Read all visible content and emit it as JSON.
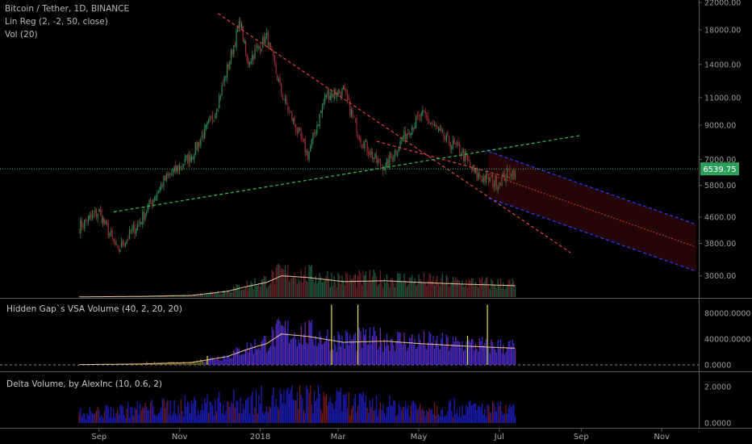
{
  "header": {
    "symbol_line": "Bitcoin / Tether, 1D, BINANCE",
    "indicator_1": "Lin Reg (2, -2, 50, close)",
    "indicator_2": "Vol (20)"
  },
  "panels": {
    "vsa_title": "Hidden Gap`s VSA Volume (40, 2, 20, 20)",
    "delta_title": "Delta Volume, by AlexInc (10, 0.6, 2)"
  },
  "colors": {
    "background": "#000000",
    "candle_up": "#2e8b57",
    "candle_down": "#9b2c33",
    "trend_red": "#e0403a",
    "trend_green": "#33c24d",
    "regression_blue": "#2b3fff",
    "regression_red": "#e03030",
    "vol_ma": "#f0c39a",
    "last_price_line": "#3fae6c",
    "vsa_blue": "#3a2dd8",
    "vsa_purple": "#7a2bb0",
    "vsa_yellow": "#e8e050",
    "delta_blue": "#1d1dbf",
    "delta_red": "#7a1a1a"
  },
  "chart_data": [
    {
      "type": "line",
      "x": [
        "2017-08-17",
        "2017-09-01",
        "2017-09-15",
        "2017-10-01",
        "2017-10-20",
        "2017-11-10",
        "2017-11-28",
        "2017-12-17",
        "2017-12-22",
        "2018-01-06",
        "2018-01-17",
        "2018-02-06",
        "2018-02-20",
        "2018-03-05",
        "2018-03-18",
        "2018-03-30",
        "2018-04-06",
        "2018-04-25",
        "2018-05-05",
        "2018-05-20",
        "2018-06-01",
        "2018-06-13",
        "2018-06-29",
        "2018-07-10",
        "2018-07-13"
      ],
      "series": [
        {
          "values": [
            4300,
            4800,
            3600,
            4400,
            6000,
            7200,
            9900,
            19200,
            14200,
            17100,
            11400,
            7200,
            11300,
            11500,
            8200,
            6900,
            6650,
            8900,
            9700,
            8200,
            7500,
            6300,
            5900,
            6450,
            6280
          ]
        }
      ],
      "x_ticks": [
        "Sep",
        "Nov",
        "2018",
        "Mar",
        "May",
        "Jul",
        "Sep",
        "Nov"
      ],
      "y_ticks": [
        "22000.00",
        "18000.00",
        "14000.00",
        "11000.00",
        "9000.00",
        "7000.00",
        "5800.00",
        "4600.00",
        "3800.00",
        "3000.00"
      ],
      "last_price": "6539.75",
      "ylim": [
        2600,
        22000
      ],
      "y_scale": "log",
      "grid": false
    },
    {
      "type": "bar",
      "x": [
        "2017-08-17",
        "2017-10-01",
        "2017-11-10",
        "2017-12-07",
        "2017-12-22",
        "2018-01-06",
        "2018-01-17",
        "2018-02-06",
        "2018-03-05",
        "2018-04-06",
        "2018-05-01",
        "2018-06-01",
        "2018-07-13"
      ],
      "series": [
        {
          "values": [
            500,
            1500,
            4000,
            14000,
            26000,
            36000,
            52000,
            48000,
            38000,
            40000,
            36000,
            32000,
            28000
          ]
        }
      ],
      "y_ticks": [
        "80000.0000",
        "40000.0000",
        "0.0000"
      ],
      "ylim": [
        0,
        95000
      ]
    },
    {
      "type": "bar",
      "x": [
        "2017-08-17",
        "2017-10-01",
        "2017-12-07",
        "2018-01-06",
        "2018-02-06",
        "2018-04-06",
        "2018-06-01",
        "2018-07-13"
      ],
      "series": [
        {
          "values": [
            0.6,
            0.9,
            1.3,
            1.5,
            1.6,
            1.1,
            1.0,
            0.8
          ]
        }
      ],
      "y_ticks": [
        "2.0000",
        "0.0000"
      ],
      "ylim": [
        0,
        2.5
      ]
    }
  ]
}
